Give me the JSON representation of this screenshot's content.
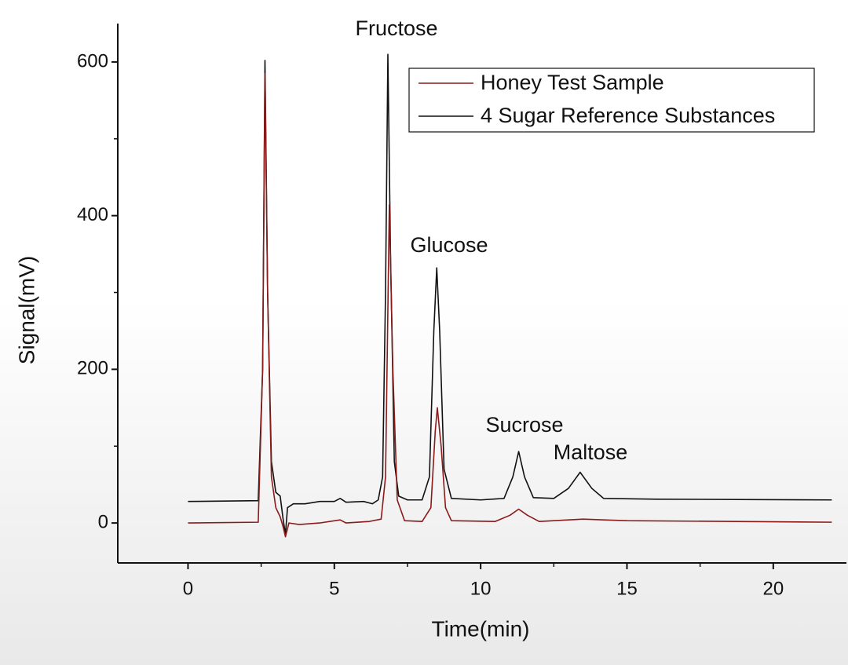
{
  "chart_data": {
    "type": "line",
    "x_label": "Time(min)",
    "y_label": "Signal(mV)",
    "xlim": [
      -2.4,
      22.5
    ],
    "ylim": [
      -52,
      650
    ],
    "xticks": [
      0,
      5,
      10,
      15,
      20
    ],
    "yticks": [
      0,
      200,
      400,
      600
    ],
    "minor_xticks": [
      2.5,
      7.5,
      12.5,
      17.5
    ],
    "minor_yticks": [
      100,
      300,
      500
    ],
    "legend": "upper right",
    "annotations": [
      "Fructose",
      "Glucose",
      "Sucrose",
      "Maltose"
    ],
    "series": [
      {
        "name": "Honey Test Sample",
        "color": "#8b1a1a",
        "x": [
          0,
          2.4,
          2.55,
          2.63,
          2.72,
          2.85,
          3.0,
          3.15,
          3.25,
          3.33,
          3.45,
          3.8,
          4.5,
          5.2,
          5.4,
          6.2,
          6.6,
          6.75,
          6.88,
          7.0,
          7.15,
          7.4,
          8.0,
          8.3,
          8.45,
          8.52,
          8.65,
          8.8,
          9.0,
          10.5,
          11.0,
          11.3,
          11.6,
          12.0,
          13.5,
          15,
          22
        ],
        "values": [
          0,
          1,
          200,
          585,
          300,
          60,
          20,
          8,
          -5,
          -18,
          0,
          -2,
          0,
          4,
          0,
          2,
          5,
          60,
          414,
          200,
          30,
          3,
          2,
          20,
          120,
          150,
          100,
          20,
          3,
          2,
          10,
          18,
          10,
          2,
          5,
          3,
          1
        ]
      },
      {
        "name": "4 Sugar Reference Substances",
        "color": "#111111",
        "x": [
          0,
          2.4,
          2.55,
          2.63,
          2.72,
          2.85,
          3.0,
          3.15,
          3.25,
          3.33,
          3.4,
          3.6,
          4.0,
          4.5,
          5.0,
          5.2,
          5.4,
          6.0,
          6.3,
          6.5,
          6.65,
          6.75,
          6.83,
          6.92,
          7.05,
          7.2,
          7.5,
          8.0,
          8.25,
          8.4,
          8.5,
          8.6,
          8.75,
          9.0,
          10.0,
          10.8,
          11.1,
          11.3,
          11.5,
          11.8,
          12.5,
          13.0,
          13.4,
          13.8,
          14.2,
          16,
          22
        ],
        "values": [
          28,
          29,
          200,
          602,
          300,
          80,
          40,
          35,
          5,
          -15,
          20,
          25,
          25,
          28,
          28,
          32,
          27,
          28,
          25,
          30,
          60,
          300,
          610,
          350,
          80,
          35,
          30,
          30,
          60,
          250,
          332,
          250,
          70,
          32,
          30,
          32,
          60,
          93,
          60,
          33,
          32,
          45,
          66,
          45,
          32,
          31,
          30
        ]
      }
    ]
  }
}
